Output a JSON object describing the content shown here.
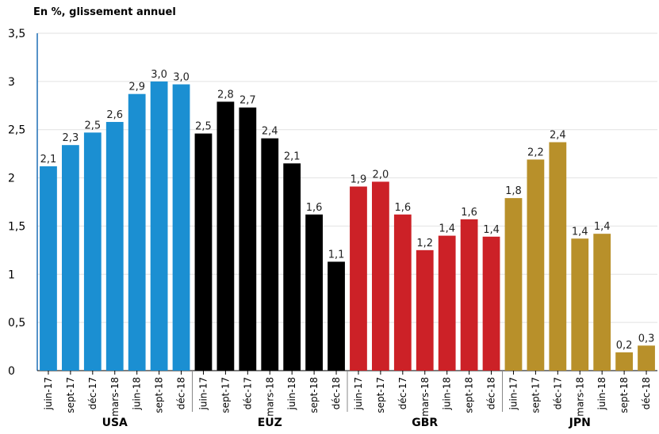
{
  "chart_data": {
    "type": "bar",
    "unit_label": "En %, glissement annuel",
    "ylim": [
      0,
      3.5
    ],
    "yticks": [
      "0",
      "0,5",
      "1",
      "1,5",
      "2",
      "2,5",
      "3",
      "3,5"
    ],
    "grid": true,
    "groups": [
      {
        "name": "USA",
        "color": "#1b8fd2",
        "categories": [
          "juin-17",
          "sept-17",
          "déc-17",
          "mars-18",
          "juin-18",
          "sept-18",
          "déc-18"
        ],
        "values": [
          2.12,
          2.34,
          2.47,
          2.58,
          2.87,
          3.0,
          2.97
        ],
        "labels": [
          "2,1",
          "2,3",
          "2,5",
          "2,6",
          "2,9",
          "3,0",
          "3,0"
        ]
      },
      {
        "name": "EUZ",
        "color": "#000000",
        "categories": [
          "juin-17",
          "sept-17",
          "déc-17",
          "mars-18",
          "juin-18",
          "sept-18",
          "déc-18"
        ],
        "values": [
          2.46,
          2.79,
          2.73,
          2.41,
          2.15,
          1.62,
          1.13
        ],
        "labels": [
          "2,5",
          "2,8",
          "2,7",
          "2,4",
          "2,1",
          "1,6",
          "1,1"
        ]
      },
      {
        "name": "GBR",
        "color": "#cc2127",
        "categories": [
          "juin-17",
          "sept-17",
          "déc-17",
          "mars-18",
          "juin-18",
          "sept-18",
          "déc-18"
        ],
        "values": [
          1.91,
          1.96,
          1.62,
          1.25,
          1.4,
          1.57,
          1.39
        ],
        "labels": [
          "1,9",
          "2,0",
          "1,6",
          "1,2",
          "1,4",
          "1,6",
          "1,4"
        ]
      },
      {
        "name": "JPN",
        "color": "#b8902a",
        "categories": [
          "juin-17",
          "sept-17",
          "déc-17",
          "mars-18",
          "juin-18",
          "sept-18",
          "déc-18"
        ],
        "values": [
          1.79,
          2.19,
          2.37,
          1.37,
          1.42,
          0.19,
          0.26
        ],
        "labels": [
          "1,8",
          "2,2",
          "2,4",
          "1,4",
          "1,4",
          "0,2",
          "0,3"
        ]
      }
    ]
  }
}
